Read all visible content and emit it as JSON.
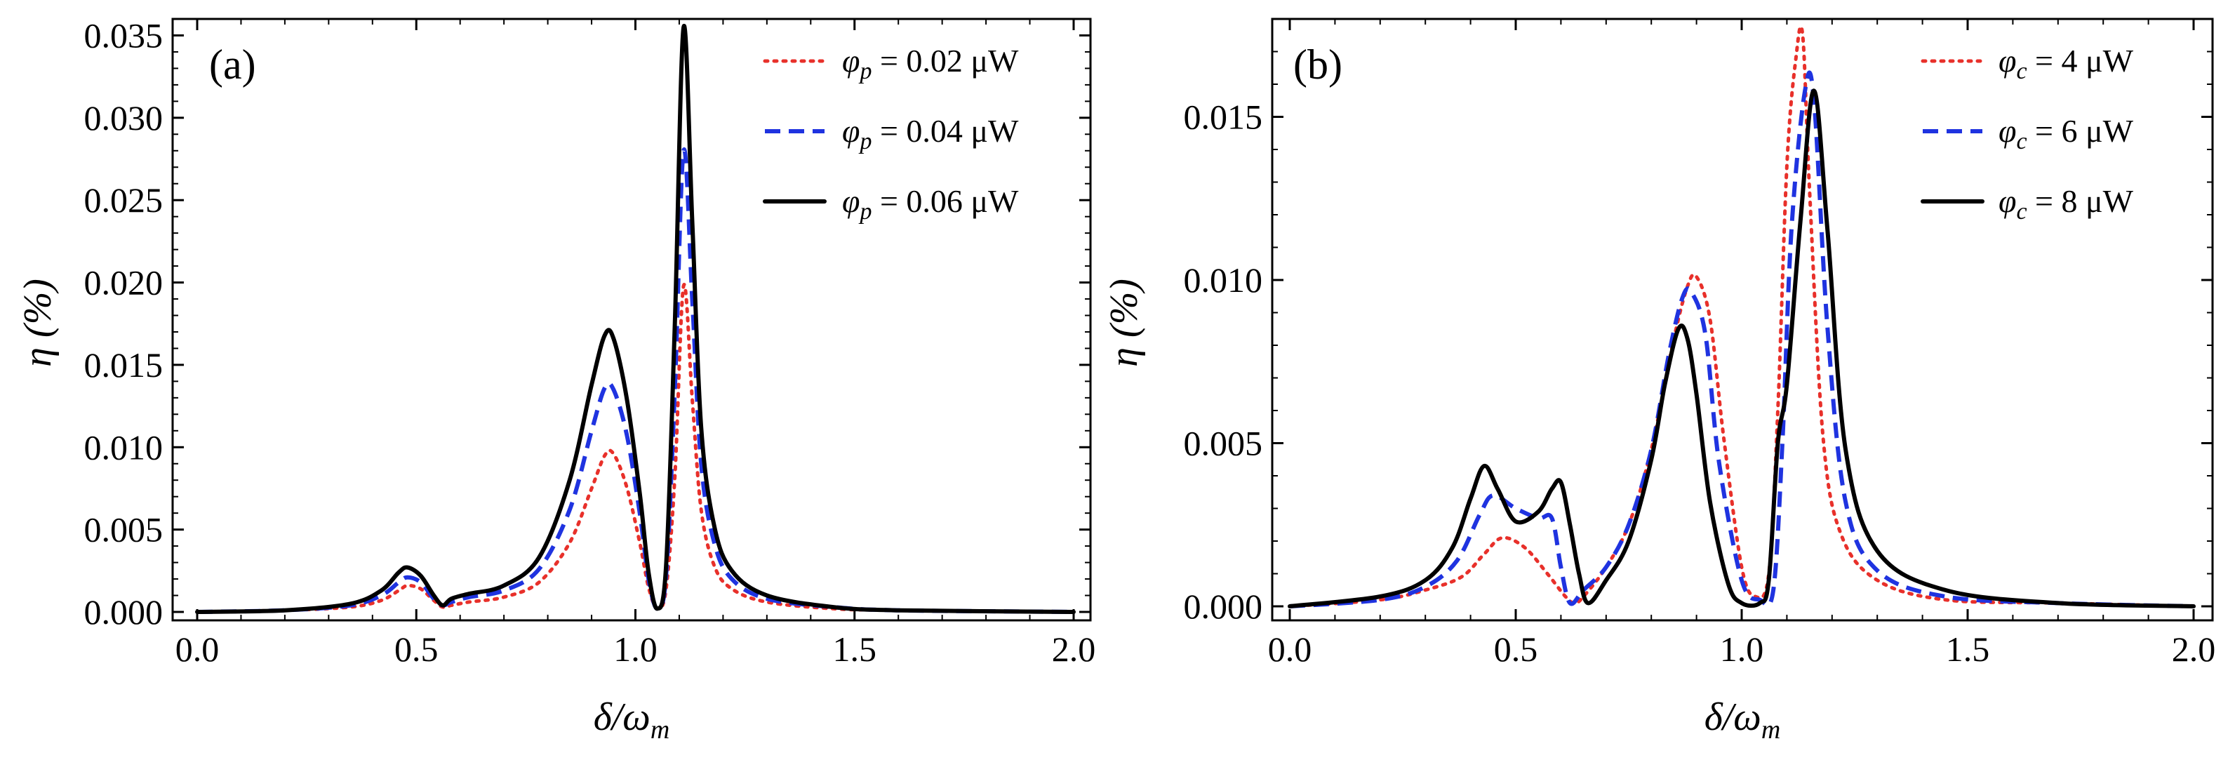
{
  "chart_data": [
    {
      "type": "line",
      "panel_label": "(a)",
      "xlabel": "δ/ωm",
      "xlabel_main": "δ/ω",
      "xlabel_sub": "m",
      "ylabel": "η (%)",
      "xlim": [
        0,
        2
      ],
      "ylim": [
        0,
        0.036
      ],
      "x_ticks": [
        0.0,
        0.5,
        1.0,
        1.5,
        2.0
      ],
      "x_tick_labels": [
        "0.0",
        "0.5",
        "1.0",
        "1.5",
        "2.0"
      ],
      "y_ticks": [
        0.0,
        0.005,
        0.01,
        0.015,
        0.02,
        0.025,
        0.03,
        0.035
      ],
      "y_tick_labels": [
        "0.000",
        "0.005",
        "0.010",
        "0.015",
        "0.020",
        "0.025",
        "0.030",
        "0.035"
      ],
      "legend_position": "top-right",
      "series": [
        {
          "name": "φp = 0.02 μW",
          "sym": "φ",
          "sub": "p",
          "value_text": " = 0.02 μW",
          "style": "dotted",
          "color": "#e8302a",
          "x": [
            0.0,
            0.2,
            0.35,
            0.42,
            0.46,
            0.48,
            0.51,
            0.54,
            0.56,
            0.58,
            0.62,
            0.7,
            0.78,
            0.85,
            0.9,
            0.93,
            0.95,
            0.98,
            1.01,
            1.03,
            1.05,
            1.07,
            1.09,
            1.11,
            1.13,
            1.15,
            1.18,
            1.22,
            1.3,
            1.45,
            1.6,
            2.0
          ],
          "y": [
            0.0,
            0.0001,
            0.0003,
            0.0007,
            0.0013,
            0.0016,
            0.0014,
            0.0007,
            0.0003,
            0.0004,
            0.0006,
            0.0009,
            0.0018,
            0.0042,
            0.0075,
            0.0095,
            0.0096,
            0.0076,
            0.0042,
            0.0015,
            0.0002,
            0.0014,
            0.0082,
            0.0198,
            0.0128,
            0.0062,
            0.0028,
            0.0014,
            0.0006,
            0.0002,
            0.0001,
            0.0
          ]
        },
        {
          "name": "φp = 0.04 μW",
          "sym": "φ",
          "sub": "p",
          "value_text": " = 0.04 μW",
          "style": "dashed",
          "color": "#1f33e0",
          "x": [
            0.0,
            0.2,
            0.35,
            0.42,
            0.46,
            0.48,
            0.51,
            0.54,
            0.56,
            0.58,
            0.62,
            0.7,
            0.78,
            0.85,
            0.9,
            0.93,
            0.95,
            0.98,
            1.01,
            1.03,
            1.05,
            1.07,
            1.09,
            1.11,
            1.13,
            1.15,
            1.18,
            1.22,
            1.3,
            1.45,
            1.6,
            2.0
          ],
          "y": [
            0.0,
            0.0001,
            0.0004,
            0.001,
            0.0018,
            0.0021,
            0.0018,
            0.0008,
            0.0004,
            0.0006,
            0.0009,
            0.0013,
            0.0026,
            0.0062,
            0.011,
            0.0136,
            0.0135,
            0.0108,
            0.006,
            0.002,
            0.0002,
            0.0022,
            0.0135,
            0.028,
            0.0188,
            0.009,
            0.0042,
            0.002,
            0.0008,
            0.0003,
            0.0001,
            0.0
          ]
        },
        {
          "name": "φp = 0.06 μW",
          "sym": "φ",
          "sub": "p",
          "value_text": " = 0.06 μW",
          "style": "solid",
          "color": "#000000",
          "x": [
            0.0,
            0.2,
            0.35,
            0.42,
            0.46,
            0.48,
            0.51,
            0.54,
            0.56,
            0.58,
            0.62,
            0.7,
            0.78,
            0.85,
            0.9,
            0.93,
            0.95,
            0.98,
            1.01,
            1.03,
            1.05,
            1.07,
            1.09,
            1.11,
            1.13,
            1.15,
            1.18,
            1.22,
            1.3,
            1.45,
            1.6,
            2.0
          ],
          "y": [
            0.0,
            0.0001,
            0.0005,
            0.0013,
            0.0024,
            0.0027,
            0.0022,
            0.001,
            0.0004,
            0.0008,
            0.0011,
            0.0016,
            0.0033,
            0.008,
            0.0138,
            0.0168,
            0.0166,
            0.013,
            0.0072,
            0.0024,
            0.0002,
            0.0028,
            0.0175,
            0.0355,
            0.0235,
            0.0112,
            0.0052,
            0.0025,
            0.001,
            0.0003,
            0.0001,
            0.0
          ]
        }
      ]
    },
    {
      "type": "line",
      "panel_label": "(b)",
      "xlabel": "δ/ωm",
      "xlabel_main": "δ/ω",
      "xlabel_sub": "m",
      "ylabel": "η (%)",
      "xlim": [
        0,
        2
      ],
      "ylim": [
        0,
        0.018
      ],
      "x_ticks": [
        0.0,
        0.5,
        1.0,
        1.5,
        2.0
      ],
      "x_tick_labels": [
        "0.0",
        "0.5",
        "1.0",
        "1.5",
        "2.0"
      ],
      "y_ticks": [
        0.0,
        0.005,
        0.01,
        0.015
      ],
      "y_tick_labels": [
        "0.000",
        "0.005",
        "0.010",
        "0.015"
      ],
      "legend_position": "top-right",
      "series": [
        {
          "name": "φc = 4 μW",
          "sym": "φ",
          "sub": "c",
          "value_text": " = 4 μW",
          "style": "dotted",
          "color": "#e8302a",
          "x": [
            0.0,
            0.2,
            0.3,
            0.38,
            0.43,
            0.47,
            0.52,
            0.57,
            0.61,
            0.63,
            0.65,
            0.7,
            0.75,
            0.8,
            0.85,
            0.88,
            0.9,
            0.93,
            0.96,
            1.0,
            1.03,
            1.06,
            1.08,
            1.1,
            1.12,
            1.135,
            1.15,
            1.18,
            1.22,
            1.3,
            1.45,
            1.7,
            2.0
          ],
          "y": [
            0.0,
            0.0002,
            0.0005,
            0.0009,
            0.0016,
            0.0021,
            0.0018,
            0.001,
            0.0003,
            0.0001,
            0.0003,
            0.0012,
            0.0025,
            0.0048,
            0.0082,
            0.0098,
            0.0101,
            0.0088,
            0.0052,
            0.0012,
            0.0003,
            0.001,
            0.006,
            0.0135,
            0.0168,
            0.0175,
            0.0128,
            0.0052,
            0.0022,
            0.0008,
            0.0002,
            0.0001,
            0.0
          ]
        },
        {
          "name": "φc = 6 μW",
          "sym": "φ",
          "sub": "c",
          "value_text": " = 6 μW",
          "style": "dashed",
          "color": "#1f33e0",
          "x": [
            0.0,
            0.2,
            0.3,
            0.37,
            0.42,
            0.45,
            0.5,
            0.55,
            0.58,
            0.6,
            0.62,
            0.65,
            0.7,
            0.75,
            0.8,
            0.84,
            0.87,
            0.89,
            0.92,
            0.95,
            1.0,
            1.04,
            1.07,
            1.09,
            1.11,
            1.14,
            1.16,
            1.19,
            1.23,
            1.3,
            1.45,
            1.7,
            2.0
          ],
          "y": [
            0.0,
            0.0002,
            0.0006,
            0.0014,
            0.0028,
            0.0034,
            0.003,
            0.0027,
            0.0027,
            0.0012,
            0.0001,
            0.0005,
            0.0012,
            0.0025,
            0.0048,
            0.0078,
            0.0095,
            0.0096,
            0.0083,
            0.0044,
            0.0008,
            0.0002,
            0.0005,
            0.005,
            0.0115,
            0.0158,
            0.0155,
            0.0085,
            0.0032,
            0.0011,
            0.0003,
            0.0001,
            0.0
          ]
        },
        {
          "name": "φc = 8 μW",
          "sym": "φ",
          "sub": "c",
          "value_text": " = 8 μW",
          "style": "solid",
          "color": "#000000",
          "x": [
            0.0,
            0.2,
            0.3,
            0.36,
            0.4,
            0.43,
            0.46,
            0.5,
            0.55,
            0.58,
            0.6,
            0.62,
            0.64,
            0.66,
            0.7,
            0.75,
            0.8,
            0.83,
            0.86,
            0.88,
            0.9,
            0.93,
            0.97,
            1.0,
            1.04,
            1.06,
            1.08,
            1.1,
            1.13,
            1.16,
            1.19,
            1.23,
            1.3,
            1.45,
            1.7,
            2.0
          ],
          "y": [
            0.0,
            0.0003,
            0.0008,
            0.0018,
            0.0033,
            0.0043,
            0.0036,
            0.0026,
            0.0029,
            0.0036,
            0.0038,
            0.0025,
            0.001,
            0.0001,
            0.0008,
            0.002,
            0.0045,
            0.0068,
            0.0085,
            0.0082,
            0.0065,
            0.0032,
            0.0007,
            0.0001,
            0.0001,
            0.0008,
            0.005,
            0.0068,
            0.0118,
            0.0158,
            0.0115,
            0.0048,
            0.0017,
            0.0005,
            0.0001,
            0.0
          ]
        }
      ]
    }
  ]
}
